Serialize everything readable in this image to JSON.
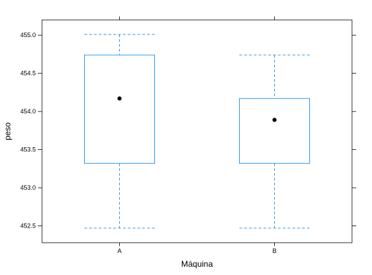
{
  "chart_data": {
    "type": "box",
    "xlabel": "Máquina",
    "ylabel": "peso",
    "categories": [
      "A",
      "B"
    ],
    "ylim": [
      452.28,
      455.2
    ],
    "yticks": [
      452.5,
      453.0,
      453.5,
      454.0,
      454.5,
      455.0
    ],
    "ytick_labels": [
      "452.5",
      "453.0",
      "453.5",
      "454.0",
      "454.5",
      "455.0"
    ],
    "series": [
      {
        "category": "A",
        "whisker_low": 452.47,
        "q1": 453.32,
        "median": 454.17,
        "q3": 454.74,
        "whisker_high": 455.01
      },
      {
        "category": "B",
        "whisker_low": 452.47,
        "q1": 453.32,
        "median": 453.89,
        "q3": 454.17,
        "whisker_high": 454.74
      }
    ],
    "grid": false,
    "colors": {
      "box": "#3399e6",
      "median_dot": "#000000",
      "frame": "#000000"
    }
  }
}
